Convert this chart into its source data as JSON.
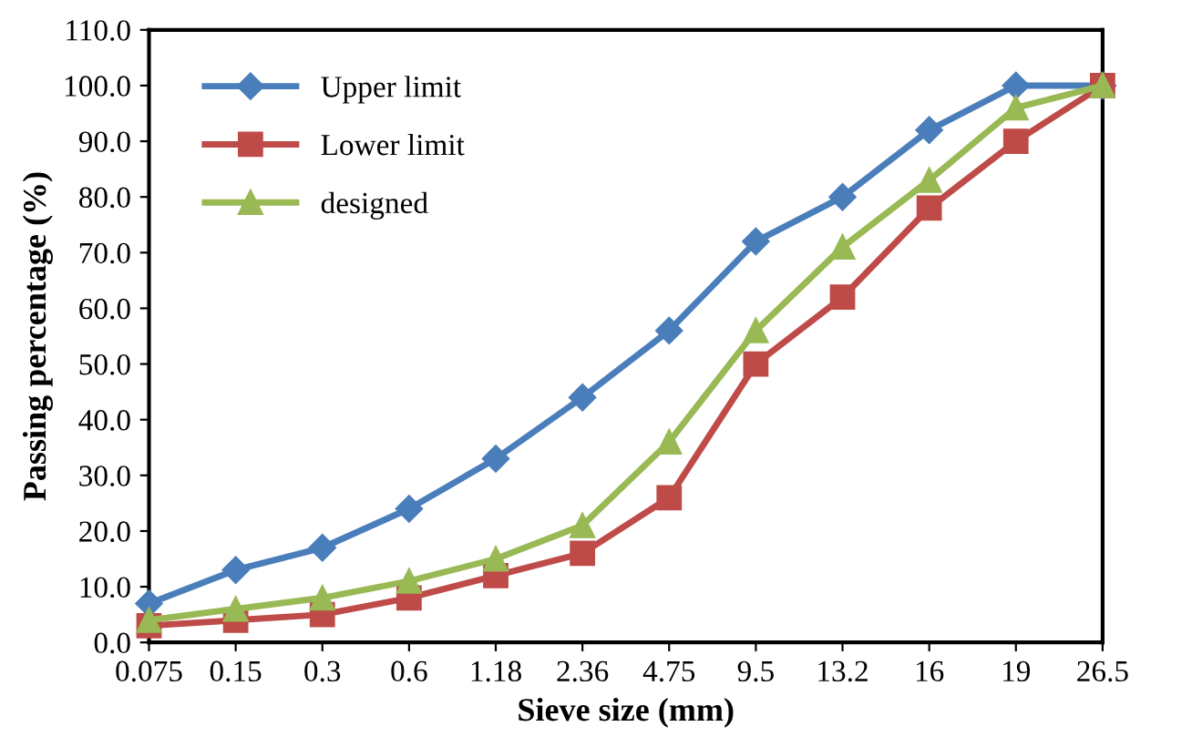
{
  "chart_data": {
    "type": "line",
    "xlabel": "Sieve size (mm)",
    "ylabel": "Passing percentage (%)",
    "categories": [
      "0.075",
      "0.15",
      "0.3",
      "0.6",
      "1.18",
      "2.36",
      "4.75",
      "9.5",
      "13.2",
      "16",
      "19",
      "26.5"
    ],
    "series": [
      {
        "name": "Upper limit",
        "color": "#4a7ebb",
        "marker": "diamond",
        "values": [
          7,
          13,
          17,
          24,
          33,
          44,
          56,
          72,
          80,
          92,
          100,
          100
        ]
      },
      {
        "name": "Lower limit",
        "color": "#be4b48",
        "marker": "square",
        "values": [
          3,
          4,
          5,
          8,
          12,
          16,
          26,
          50,
          62,
          78,
          90,
          100
        ]
      },
      {
        "name": "designed",
        "color": "#98b954",
        "marker": "triangle",
        "values": [
          4,
          6,
          8,
          11,
          15,
          21,
          36,
          56,
          71,
          83,
          96,
          100
        ]
      }
    ],
    "ylim": [
      0,
      110
    ],
    "yticks": [
      {
        "value": 0,
        "label": "0.0"
      },
      {
        "value": 10,
        "label": "10.0"
      },
      {
        "value": 20,
        "label": "20.0"
      },
      {
        "value": 30,
        "label": "30.0"
      },
      {
        "value": 40,
        "label": "40.0"
      },
      {
        "value": 50,
        "label": "50.0"
      },
      {
        "value": 60,
        "label": "60.0"
      },
      {
        "value": 70,
        "label": "70.0"
      },
      {
        "value": 80,
        "label": "80.0"
      },
      {
        "value": 90,
        "label": "90.0"
      },
      {
        "value": 100,
        "label": "100.0"
      },
      {
        "value": 110,
        "label": "110.0"
      }
    ],
    "legend": "top left",
    "grid": false,
    "line_style": "solid"
  }
}
